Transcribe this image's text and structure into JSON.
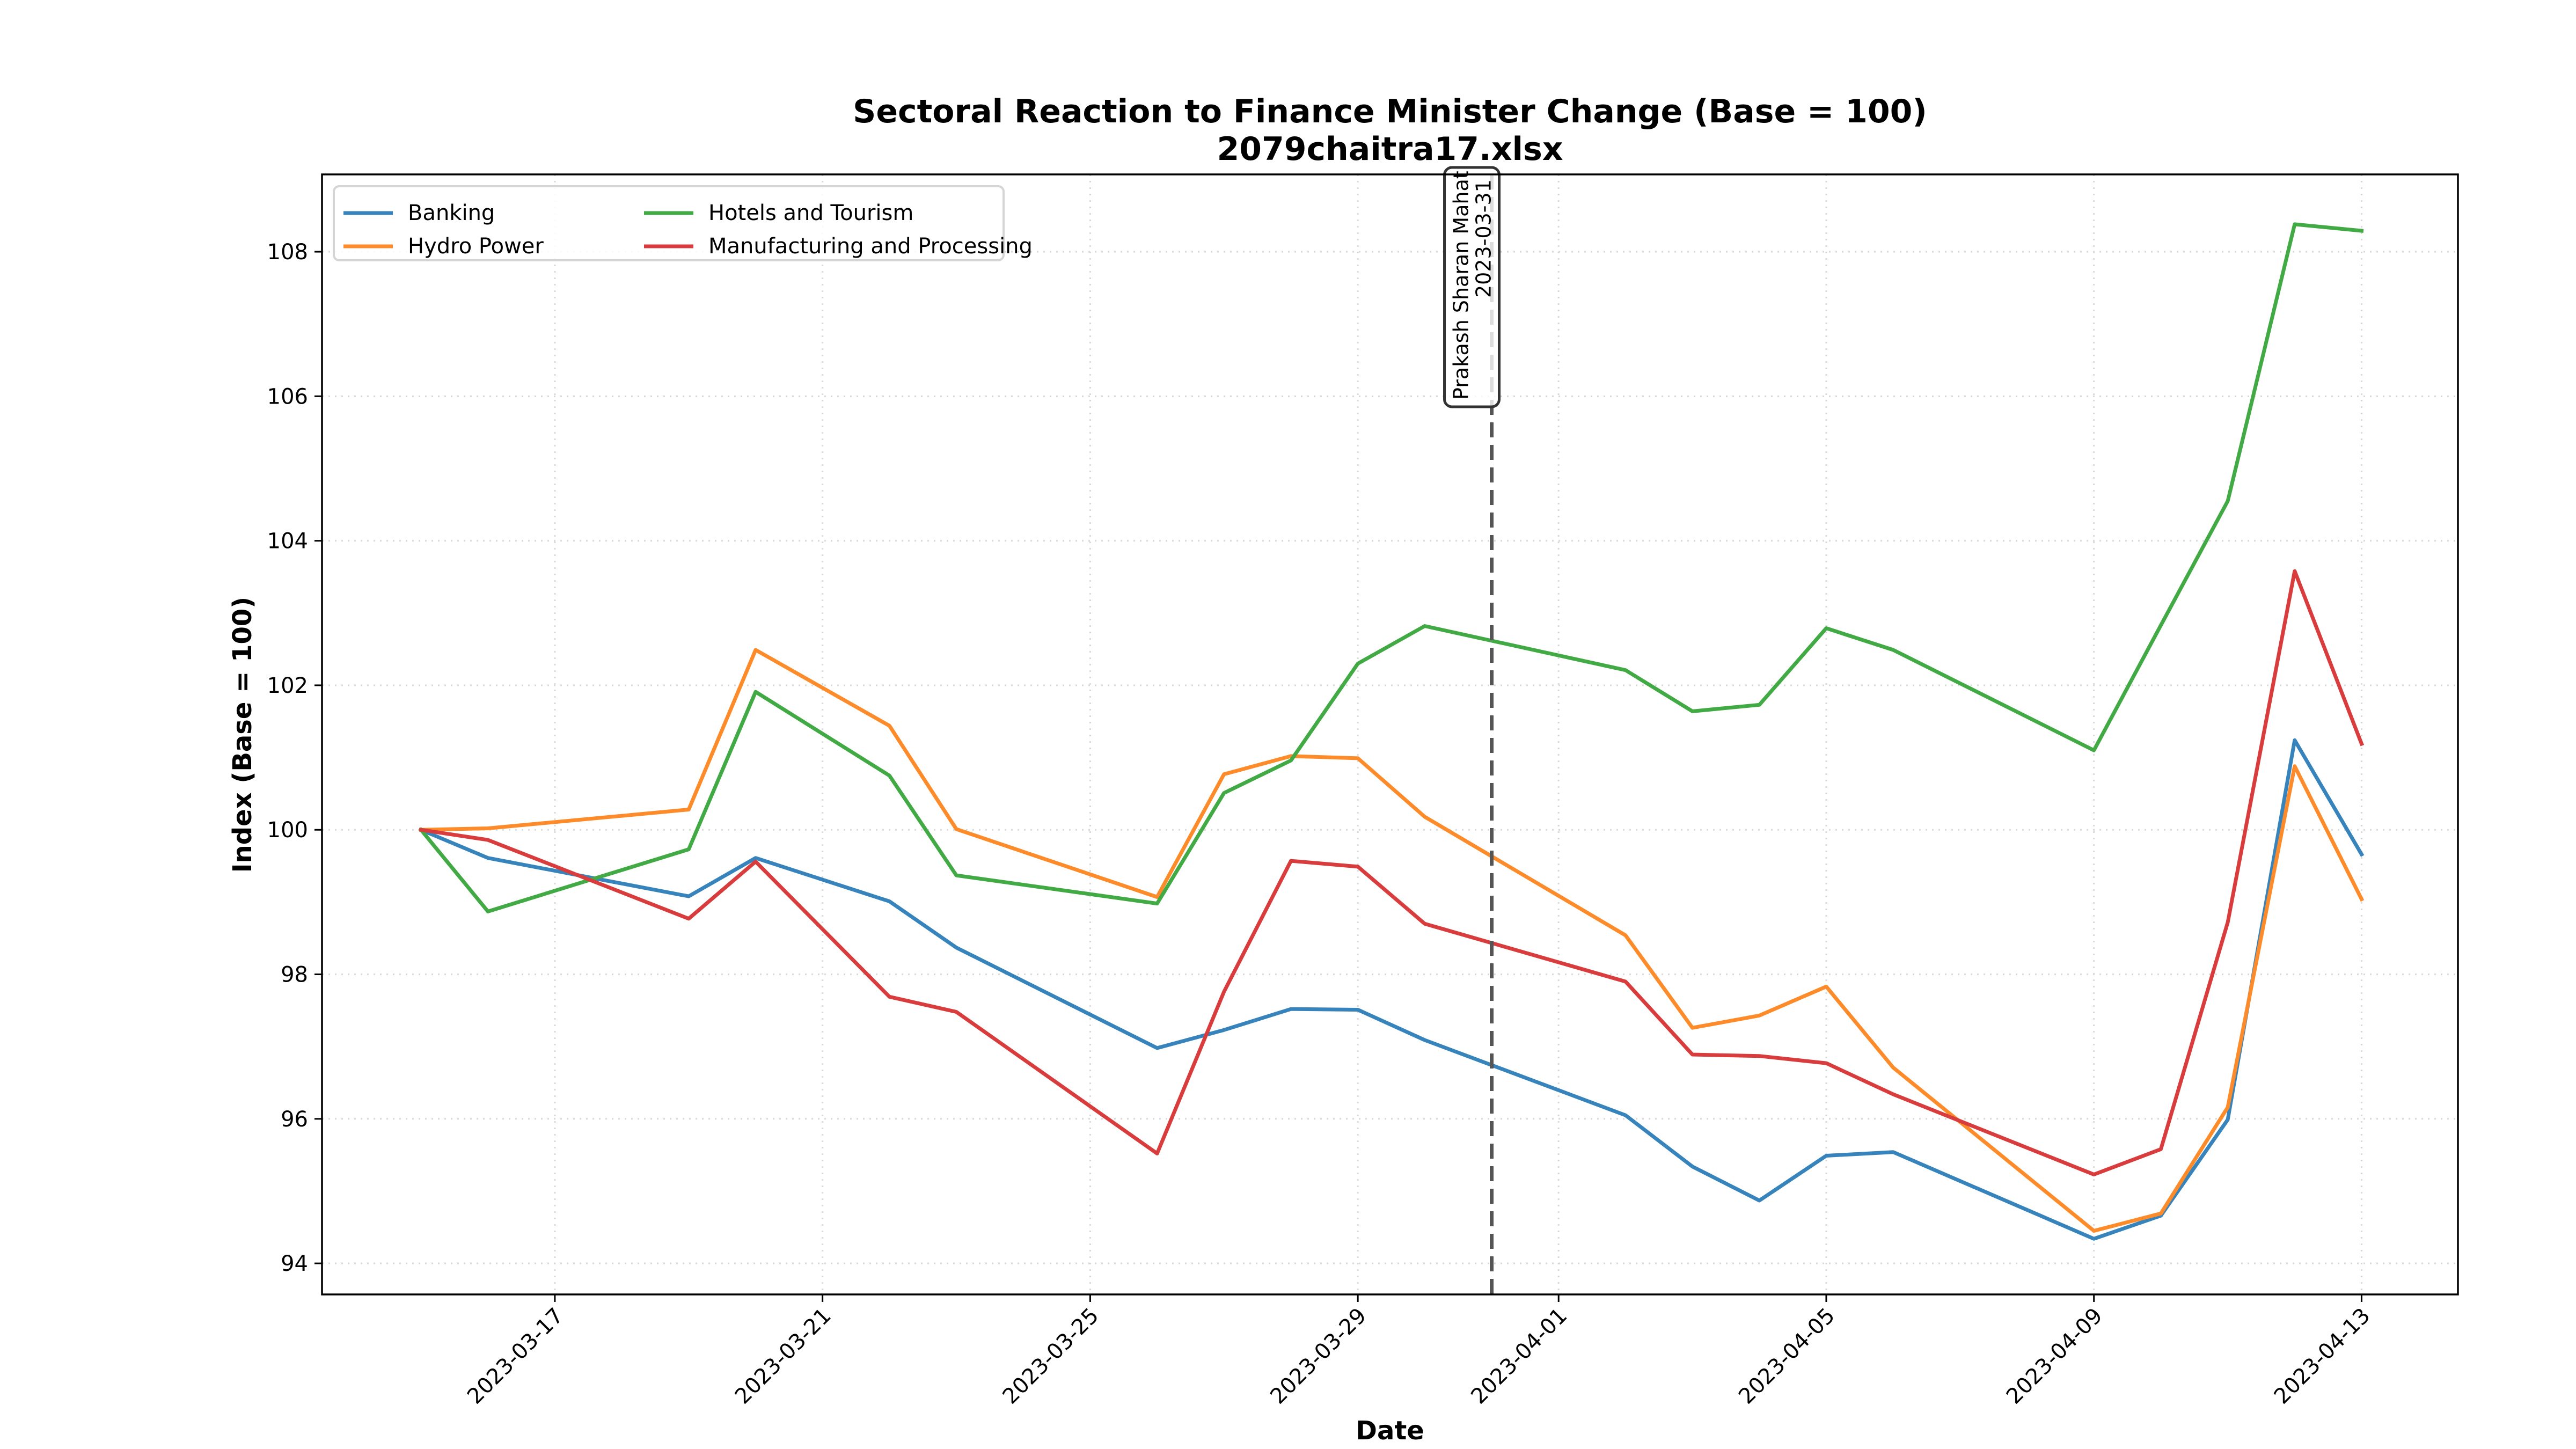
{
  "chart_data": {
    "type": "line",
    "title": "Sectoral Reaction to Finance Minister Change (Base = 100)",
    "subtitle": "2079chaitra17.xlsx",
    "xlabel": "Date",
    "ylabel": "Index (Base = 100)",
    "x_start_date": "2023-03-15",
    "xlim_days": [
      -1.48,
      30.44
    ],
    "ylim": [
      93.57,
      109.07
    ],
    "grid": true,
    "legend_position": "top-left",
    "legend_columns": 2,
    "yticks": [
      94,
      96,
      98,
      100,
      102,
      104,
      106,
      108
    ],
    "xticks": [
      {
        "label": "2023-03-17",
        "day": 2
      },
      {
        "label": "2023-03-21",
        "day": 6
      },
      {
        "label": "2023-03-25",
        "day": 10
      },
      {
        "label": "2023-03-29",
        "day": 14
      },
      {
        "label": "2023-04-01",
        "day": 17
      },
      {
        "label": "2023-04-05",
        "day": 21
      },
      {
        "label": "2023-04-09",
        "day": 25
      },
      {
        "label": "2023-04-13",
        "day": 29
      }
    ],
    "x": [
      "2023-03-15",
      "2023-03-16",
      "2023-03-19",
      "2023-03-20",
      "2023-03-22",
      "2023-03-23",
      "2023-03-26",
      "2023-03-27",
      "2023-03-28",
      "2023-03-29",
      "2023-03-30",
      "2023-04-02",
      "2023-04-03",
      "2023-04-04",
      "2023-04-05",
      "2023-04-06",
      "2023-04-09",
      "2023-04-10",
      "2023-04-11",
      "2023-04-12",
      "2023-04-13"
    ],
    "x_days": [
      0,
      1,
      4,
      5,
      7,
      8,
      11,
      12,
      13,
      14,
      15,
      18,
      19,
      20,
      21,
      22,
      25,
      26,
      27,
      28,
      29
    ],
    "series": [
      {
        "name": "Banking",
        "color": "#3784bc",
        "values": [
          100.0,
          99.61,
          99.08,
          99.61,
          99.01,
          98.37,
          96.98,
          97.23,
          97.52,
          97.51,
          97.09,
          96.05,
          95.34,
          94.87,
          95.49,
          95.54,
          94.34,
          94.66,
          95.99,
          101.24,
          99.66
        ]
      },
      {
        "name": "Hydro Power",
        "color": "#fd8b2a",
        "values": [
          100.0,
          100.02,
          100.28,
          102.49,
          101.44,
          100.01,
          99.07,
          100.77,
          101.02,
          100.99,
          100.18,
          98.54,
          97.26,
          97.43,
          97.83,
          96.71,
          94.45,
          94.69,
          96.16,
          100.88,
          99.04
        ]
      },
      {
        "name": "Hotels and Tourism",
        "color": "#42aa44",
        "values": [
          100.0,
          98.87,
          99.73,
          101.91,
          100.75,
          99.37,
          98.98,
          100.51,
          100.96,
          102.3,
          102.82,
          102.21,
          101.64,
          101.73,
          102.79,
          102.49,
          101.1,
          102.83,
          104.55,
          108.38,
          108.29
        ]
      },
      {
        "name": "Manufacturing and Processing",
        "color": "#d83c3d",
        "values": [
          100.0,
          99.86,
          98.77,
          99.56,
          97.69,
          97.48,
          95.52,
          97.76,
          99.57,
          99.49,
          98.7,
          97.9,
          96.89,
          96.87,
          96.77,
          96.34,
          95.23,
          95.58,
          98.72,
          103.58,
          101.19
        ]
      }
    ],
    "annotations": [
      {
        "type": "vline",
        "date": "2023-03-31",
        "day": 16,
        "style": "dashed",
        "color": "#555555",
        "label_line1": "Prakash Sharan Mahat",
        "label_line2": "2023-03-31"
      }
    ]
  }
}
